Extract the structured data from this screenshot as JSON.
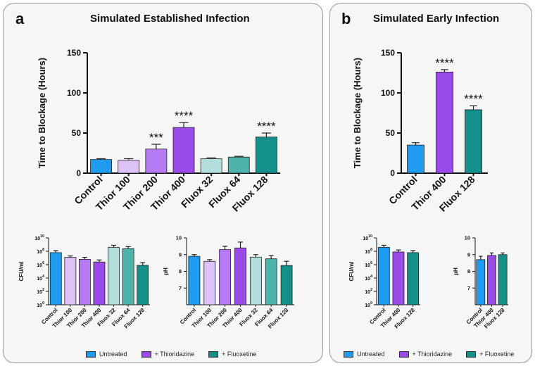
{
  "panel_a": {
    "label": "a",
    "title": "Simulated Established Infection"
  },
  "panel_b": {
    "label": "b",
    "title": "Simulated Early Infection"
  },
  "legend": [
    {
      "label": "Untreated",
      "color": "#1f9bf0"
    },
    {
      "label": "+ Thioridazine",
      "color": "#9a4ae8"
    },
    {
      "label": "+ Fluoxetine",
      "color": "#14908a"
    }
  ],
  "chart_data": [
    {
      "id": "a_main",
      "type": "bar",
      "panel": "a",
      "ylabel": "Time to Blockage (Hours)",
      "ylim": [
        0,
        150
      ],
      "yticks": [
        0,
        50,
        100,
        150
      ],
      "scale": "linear",
      "categories": [
        "Control",
        "Thior 100",
        "Thior 200",
        "Thior 400",
        "Fluox 32",
        "Fluox 64",
        "Fluox 128"
      ],
      "values": [
        17,
        16,
        30,
        57,
        18,
        20,
        45
      ],
      "errors": [
        1,
        2,
        6,
        6,
        1,
        1,
        5
      ],
      "colors": [
        "#1f9bf0",
        "#ddc2f7",
        "#b67bf4",
        "#9a4ae8",
        "#b3dedb",
        "#4db3ab",
        "#14908a"
      ],
      "annotations": [
        "",
        "",
        "***",
        "****",
        "",
        "",
        "****"
      ]
    },
    {
      "id": "b_main",
      "type": "bar",
      "panel": "b",
      "ylabel": "Time to Blockage (Hours)",
      "ylim": [
        0,
        150
      ],
      "yticks": [
        0,
        50,
        100,
        150
      ],
      "scale": "linear",
      "categories": [
        "Control",
        "Thior 400",
        "Fluox 128"
      ],
      "values": [
        35,
        126,
        79
      ],
      "errors": [
        3,
        3,
        5
      ],
      "colors": [
        "#1f9bf0",
        "#9a4ae8",
        "#14908a"
      ],
      "annotations": [
        "",
        "****",
        "****"
      ]
    },
    {
      "id": "a_cfu",
      "type": "bar",
      "panel": "a",
      "ylabel": "CFU/ml",
      "ylim": [
        0,
        10
      ],
      "yticks": [
        0,
        2,
        4,
        6,
        8,
        10
      ],
      "ytick_labels": [
        {
          "base": "10",
          "exp": "0"
        },
        {
          "base": "10",
          "exp": "2"
        },
        {
          "base": "10",
          "exp": "4"
        },
        {
          "base": "10",
          "exp": "6"
        },
        {
          "base": "10",
          "exp": "8"
        },
        {
          "base": "10",
          "exp": "10"
        }
      ],
      "scale": "log10",
      "categories": [
        "Control",
        "Thior 100",
        "Thior 200",
        "Thior 400",
        "Fluox 32",
        "Fluox 64",
        "Fluox 128"
      ],
      "values": [
        7.8,
        7.1,
        6.8,
        6.4,
        8.6,
        8.4,
        5.9
      ],
      "errors": [
        0.3,
        0.2,
        0.3,
        0.3,
        0.3,
        0.3,
        0.4
      ],
      "colors": [
        "#1f9bf0",
        "#ddc2f7",
        "#b67bf4",
        "#9a4ae8",
        "#b3dedb",
        "#4db3ab",
        "#14908a"
      ]
    },
    {
      "id": "a_ph",
      "type": "bar",
      "panel": "a",
      "ylabel": "pH",
      "ylim": [
        6,
        10
      ],
      "yticks": [
        7,
        8,
        9,
        10
      ],
      "scale": "linear",
      "categories": [
        "Control",
        "Thior 100",
        "Thior 200",
        "Thior 400",
        "Fluox 32",
        "Fluox 64",
        "Fluox 128"
      ],
      "values": [
        8.9,
        8.6,
        9.3,
        9.4,
        8.85,
        8.75,
        8.35
      ],
      "errors": [
        0.1,
        0.1,
        0.2,
        0.35,
        0.15,
        0.2,
        0.25
      ],
      "colors": [
        "#1f9bf0",
        "#ddc2f7",
        "#b67bf4",
        "#9a4ae8",
        "#b3dedb",
        "#4db3ab",
        "#14908a"
      ]
    },
    {
      "id": "b_cfu",
      "type": "bar",
      "panel": "b",
      "ylabel": "CFU/ml",
      "ylim": [
        0,
        10
      ],
      "yticks": [
        0,
        2,
        4,
        6,
        8,
        10
      ],
      "ytick_labels": [
        {
          "base": "10",
          "exp": "0"
        },
        {
          "base": "10",
          "exp": "2"
        },
        {
          "base": "10",
          "exp": "4"
        },
        {
          "base": "10",
          "exp": "6"
        },
        {
          "base": "10",
          "exp": "8"
        },
        {
          "base": "10",
          "exp": "10"
        }
      ],
      "scale": "log10",
      "categories": [
        "Control",
        "Thior 400",
        "Fluox 128"
      ],
      "values": [
        8.6,
        7.9,
        7.8
      ],
      "errors": [
        0.3,
        0.3,
        0.3
      ],
      "colors": [
        "#1f9bf0",
        "#9a4ae8",
        "#14908a"
      ]
    },
    {
      "id": "b_ph",
      "type": "bar",
      "panel": "b",
      "ylabel": "pH",
      "ylim": [
        6,
        10
      ],
      "yticks": [
        7,
        8,
        9,
        10
      ],
      "scale": "linear",
      "categories": [
        "Control",
        "Thior 400",
        "Fluox 128"
      ],
      "values": [
        8.7,
        8.95,
        9.0
      ],
      "errors": [
        0.2,
        0.15,
        0.1
      ],
      "colors": [
        "#1f9bf0",
        "#9a4ae8",
        "#14908a"
      ]
    }
  ]
}
